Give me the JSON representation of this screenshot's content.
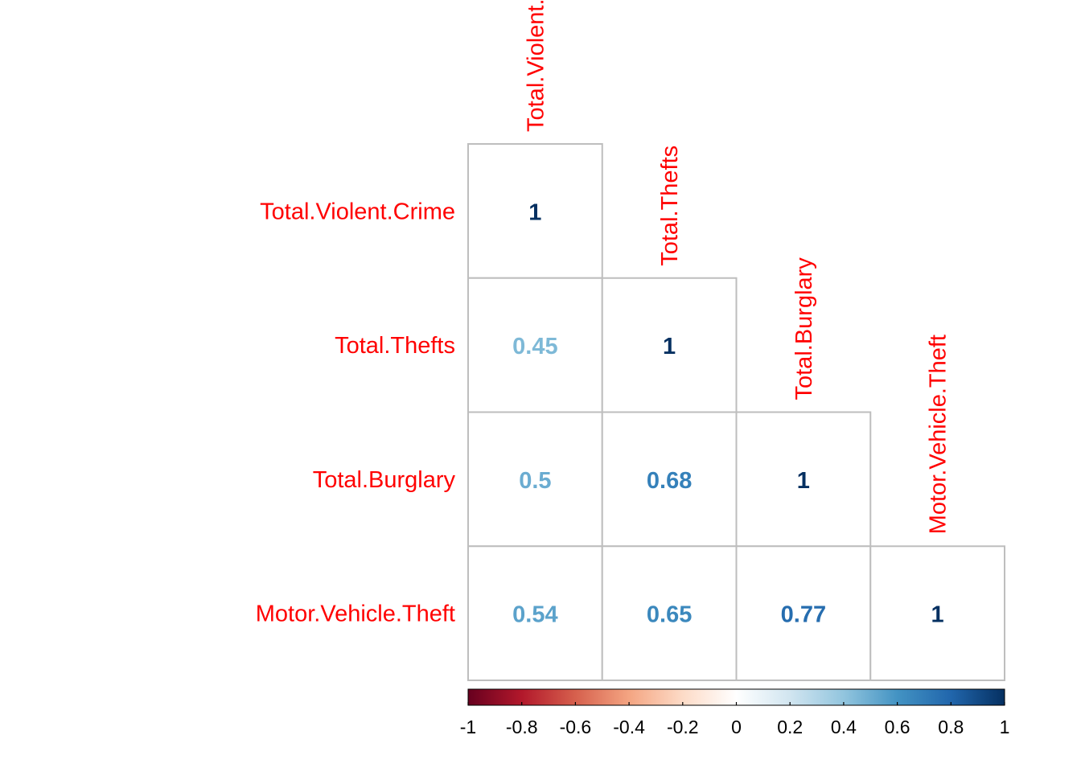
{
  "chart_data": {
    "type": "heatmap",
    "variables": [
      "Total.Violent.Crime",
      "Total.Thefts",
      "Total.Burglary",
      "Motor.Vehicle.Theft"
    ],
    "row_labels": [
      "Total.Violent.Crime",
      "Total.Thefts",
      "Total.Burglary",
      "Motor.Vehicle.Theft"
    ],
    "col_labels": [
      "Total.Violent.Crime",
      "Total.Thefts",
      "Total.Burglary",
      "Motor.Vehicle.Theft"
    ],
    "matrix_shape": "lower-triangle",
    "cells": [
      {
        "row": 0,
        "col": 0,
        "value": 1,
        "label": "1"
      },
      {
        "row": 1,
        "col": 0,
        "value": 0.45,
        "label": "0.45"
      },
      {
        "row": 1,
        "col": 1,
        "value": 1,
        "label": "1"
      },
      {
        "row": 2,
        "col": 0,
        "value": 0.5,
        "label": "0.5"
      },
      {
        "row": 2,
        "col": 1,
        "value": 0.68,
        "label": "0.68"
      },
      {
        "row": 2,
        "col": 2,
        "value": 1,
        "label": "1"
      },
      {
        "row": 3,
        "col": 0,
        "value": 0.54,
        "label": "0.54"
      },
      {
        "row": 3,
        "col": 1,
        "value": 0.65,
        "label": "0.65"
      },
      {
        "row": 3,
        "col": 2,
        "value": 0.77,
        "label": "0.77"
      },
      {
        "row": 3,
        "col": 3,
        "value": 1,
        "label": "1"
      }
    ],
    "colorbar": {
      "range": [
        -1,
        1
      ],
      "ticks": [
        -1,
        -0.8,
        -0.6,
        -0.4,
        -0.2,
        0,
        0.2,
        0.4,
        0.6,
        0.8,
        1
      ],
      "tick_labels": [
        "-1",
        "-0.8",
        "-0.6",
        "-0.4",
        "-0.2",
        "0",
        "0.2",
        "0.4",
        "0.6",
        "0.8",
        "1"
      ],
      "palette": [
        "#67001F",
        "#B2182B",
        "#D6604D",
        "#F4A582",
        "#FDDBC7",
        "#FFFFFF",
        "#D1E5F0",
        "#92C5DE",
        "#4393C3",
        "#2166AC",
        "#053061"
      ],
      "placement": "bottom"
    },
    "label_color": "#FF0000",
    "grid_color": "#BEBEBE"
  }
}
